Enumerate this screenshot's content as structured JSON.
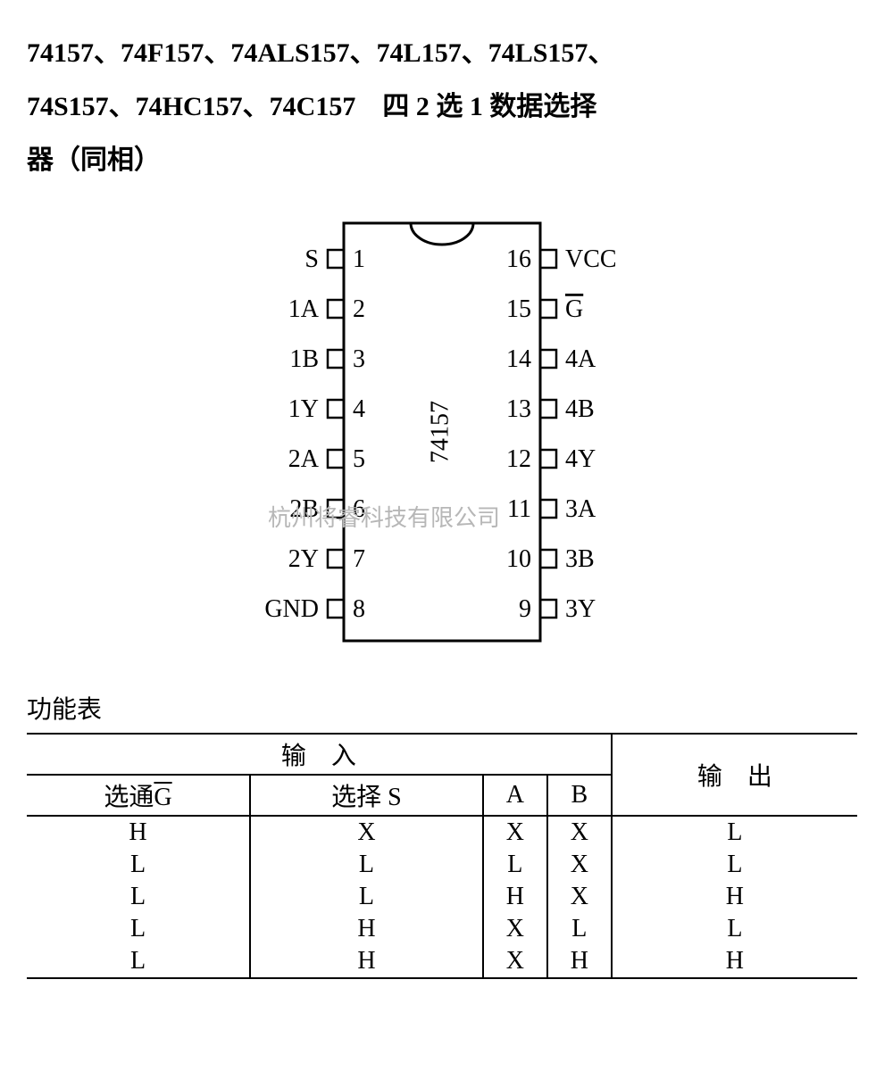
{
  "title_parts": {
    "p1": "74157、74F157、74ALS157、74L157、74LS157、",
    "p2": "74S157、74HC157、74C157　四 2 选 1 数据选择",
    "p3": "器（同相）"
  },
  "chip": {
    "label": "74157",
    "body_stroke": "#000000",
    "body_fill": "#ffffff",
    "text_color": "#000000",
    "font_size_pin": 28,
    "font_size_label": 28,
    "left_pins": [
      {
        "num": "1",
        "name": "S",
        "overline": false
      },
      {
        "num": "2",
        "name": "1A",
        "overline": false
      },
      {
        "num": "3",
        "name": "1B",
        "overline": false
      },
      {
        "num": "4",
        "name": "1Y",
        "overline": false
      },
      {
        "num": "5",
        "name": "2A",
        "overline": false
      },
      {
        "num": "6",
        "name": "2B",
        "overline": false
      },
      {
        "num": "7",
        "name": "2Y",
        "overline": false
      },
      {
        "num": "8",
        "name": "GND",
        "overline": false
      }
    ],
    "right_pins": [
      {
        "num": "16",
        "name": "VCC",
        "overline": false
      },
      {
        "num": "15",
        "name": "G",
        "overline": true
      },
      {
        "num": "14",
        "name": "4A",
        "overline": false
      },
      {
        "num": "13",
        "name": "4B",
        "overline": false
      },
      {
        "num": "12",
        "name": "4Y",
        "overline": false
      },
      {
        "num": "11",
        "name": "3A",
        "overline": false
      },
      {
        "num": "10",
        "name": "3B",
        "overline": false
      },
      {
        "num": "9",
        "name": "3Y",
        "overline": false
      }
    ]
  },
  "table": {
    "title": "功能表",
    "header_input": "输　入",
    "header_output": "输　出",
    "cols": {
      "g_prefix": "选通",
      "g_letter": "G",
      "s": "选择 S",
      "a": "A",
      "b": "B"
    },
    "rows": [
      [
        "H",
        "X",
        "X",
        "X",
        "L"
      ],
      [
        "L",
        "L",
        "L",
        "X",
        "L"
      ],
      [
        "L",
        "L",
        "H",
        "X",
        "H"
      ],
      [
        "L",
        "H",
        "X",
        "L",
        "L"
      ],
      [
        "L",
        "H",
        "X",
        "H",
        "H"
      ]
    ]
  },
  "watermark": {
    "text": "杭州将睿科技有限公司",
    "color": "#b7b7b7"
  }
}
